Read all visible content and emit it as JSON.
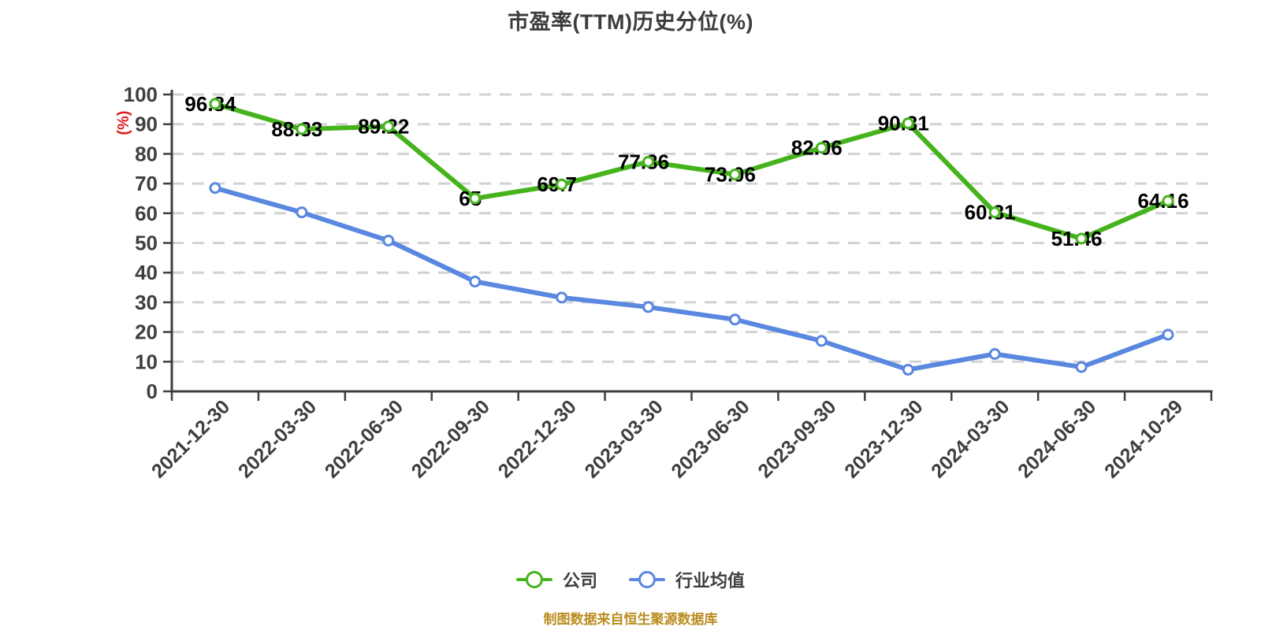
{
  "title": "市盈率(TTM)历史分位(%)",
  "source_note": "制图数据来自恒生聚源数据库",
  "colors": {
    "background": "#ffffff",
    "company_line": "#45b41c",
    "industry_line": "#5a87e0",
    "title_text": "#3c3c3c",
    "axis_text": "#3f3f3f",
    "axis_line": "#3f3f3f",
    "gridline": "#d2d2d2",
    "data_label": "#000000",
    "y_axis_name": "#e01f1f",
    "source_text": "#b98c1e",
    "marker_fill": "#ffffff"
  },
  "legend": {
    "items": [
      {
        "label": "公司"
      },
      {
        "label": "行业均值"
      }
    ]
  },
  "chart_data": {
    "type": "line",
    "title": "市盈率(TTM)历史分位(%)",
    "categories": [
      "2021-12-30",
      "2022-03-30",
      "2022-06-30",
      "2022-09-30",
      "2022-12-30",
      "2023-03-30",
      "2023-06-30",
      "2023-09-30",
      "2023-12-30",
      "2024-03-30",
      "2024-06-30",
      "2024-10-29"
    ],
    "series": [
      {
        "name": "公司",
        "color": "#45b41c",
        "values": [
          96.84,
          88.33,
          89.22,
          65,
          69.7,
          77.36,
          73.06,
          82.06,
          90.31,
          60.31,
          51.46,
          64.16
        ],
        "point_labels_visible": true
      },
      {
        "name": "行业均值",
        "color": "#5a87e0",
        "values": [
          68.5,
          60.3,
          50.8,
          37,
          31.6,
          28.4,
          24.2,
          17,
          7.3,
          12.6,
          8.2,
          19.1
        ],
        "point_labels_visible": false
      }
    ],
    "xlabel": "",
    "ylabel": "(%)",
    "ylim": [
      0,
      100
    ],
    "y_interval": 10,
    "y_tick_labels": [
      "0",
      "10",
      "20",
      "30",
      "40",
      "50",
      "60",
      "70",
      "80",
      "90",
      "100"
    ],
    "x_label_rotation_deg": 45,
    "grid": "horizontal dashed",
    "legend_position": "bottom"
  }
}
